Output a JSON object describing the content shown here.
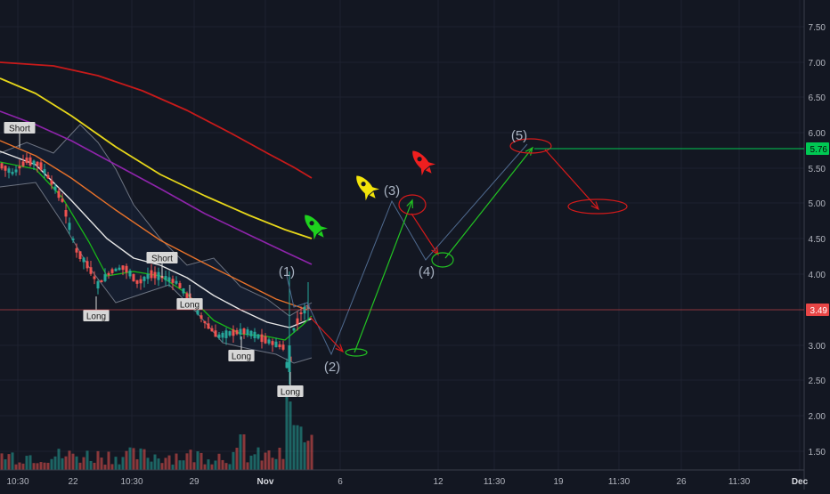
{
  "chart_data": {
    "type": "candlestick",
    "y_axis": {
      "ticks": [
        "7.50",
        "7.00",
        "6.50",
        "6.00",
        "5.50",
        "5.00",
        "4.50",
        "4.00",
        "3.50",
        "3.00",
        "2.50",
        "2.00",
        "1.50"
      ],
      "range": [
        1.15,
        7.75
      ],
      "price_labels": [
        {
          "value": 5.76,
          "text": "5.76",
          "color": "#00c853"
        },
        {
          "value": 3.49,
          "text": "3.49",
          "color": "#e84646"
        }
      ]
    },
    "x_axis": {
      "ticks": [
        "10:30",
        "22",
        "10:30",
        "29",
        "Nov",
        "6",
        "12",
        "11:30",
        "19",
        "11:30",
        "26",
        "11:30",
        "Dec"
      ]
    },
    "trade_labels": [
      "Short",
      "Long",
      "Short",
      "Long",
      "Long",
      "Long"
    ],
    "wave_labels": [
      "(1)",
      "(2)",
      "(3)",
      "(4)",
      "(5)"
    ],
    "rocket_icons": [
      "green",
      "yellow",
      "red"
    ],
    "colors": {
      "background": "#131722",
      "up": "#26a69a",
      "down": "#ef5350",
      "ema_red": "#c71a1a",
      "ema_yellow": "#e6d61a",
      "ema_purple": "#8e24aa",
      "ema_orange": "#e8722a",
      "ema_white": "#e6e6e6",
      "ema_green": "#18b818",
      "projection_green": "#22c422",
      "projection_red": "#d61a1a",
      "projection_blue": "#4f6a8f"
    }
  }
}
